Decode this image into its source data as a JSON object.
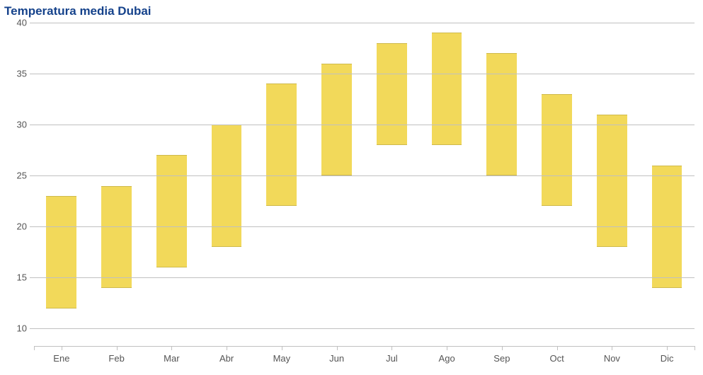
{
  "chart": {
    "type": "range_bar",
    "title": "Temperatura media Dubai",
    "title_color": "#15428b",
    "title_fontsize": 17,
    "background_color": "#ffffff",
    "grid_color": "#c0c0c0",
    "tick_color": "#c0c0c0",
    "axis_label_color": "#555555",
    "axis_label_fontsize": 13,
    "bar_color": "#f2d95a",
    "bar_width": 0.55,
    "y": {
      "min": 8.3,
      "max": 40,
      "ticks": [
        10,
        15,
        20,
        25,
        30,
        35,
        40
      ]
    },
    "categories": [
      "Ene",
      "Feb",
      "Mar",
      "Abr",
      "May",
      "Jun",
      "Jul",
      "Ago",
      "Sep",
      "Oct",
      "Nov",
      "Dic"
    ],
    "values": [
      {
        "low": 12,
        "high": 23
      },
      {
        "low": 14,
        "high": 24
      },
      {
        "low": 16,
        "high": 27
      },
      {
        "low": 18,
        "high": 30
      },
      {
        "low": 22,
        "high": 34
      },
      {
        "low": 25,
        "high": 36
      },
      {
        "low": 28,
        "high": 38
      },
      {
        "low": 28,
        "high": 39
      },
      {
        "low": 25,
        "high": 37
      },
      {
        "low": 22,
        "high": 33
      },
      {
        "low": 18,
        "high": 31
      },
      {
        "low": 14,
        "high": 26
      }
    ]
  }
}
